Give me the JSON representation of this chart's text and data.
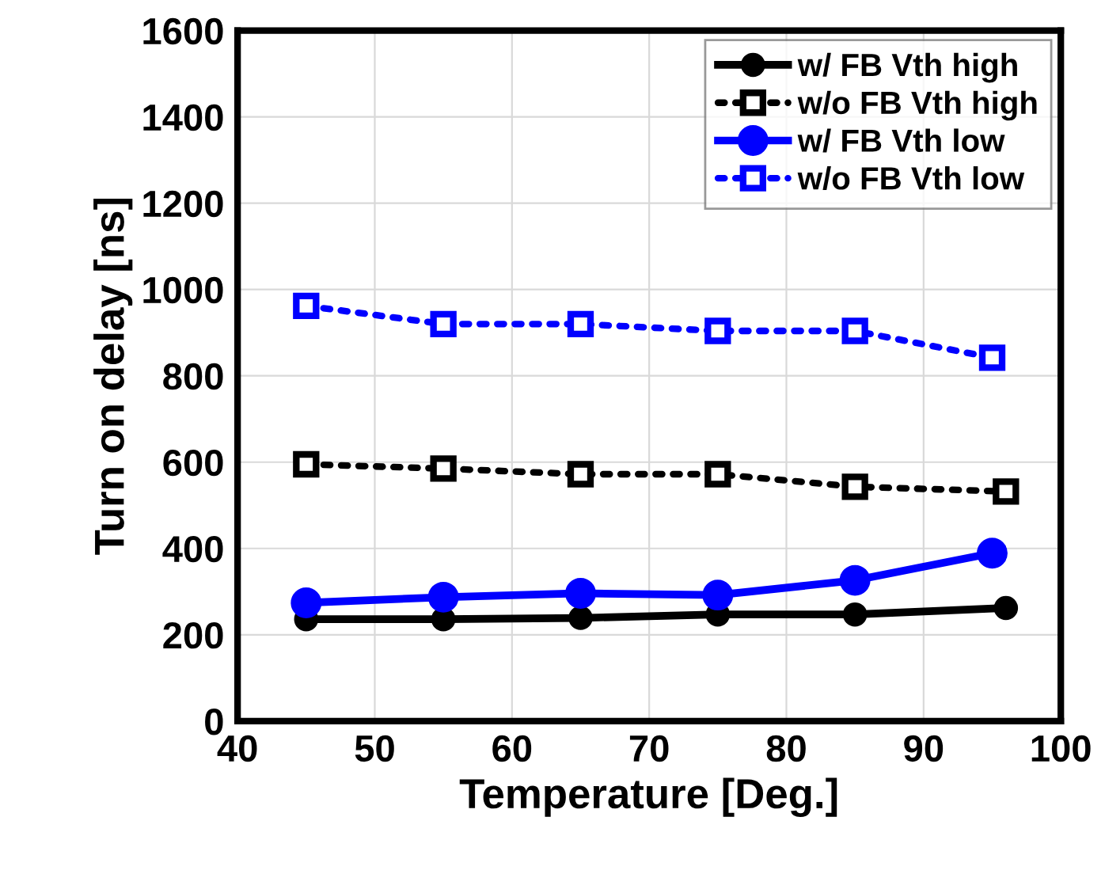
{
  "chart_data": {
    "type": "line",
    "xlabel": "Temperature [Deg.]",
    "ylabel": "Turn on delay [ns]",
    "xlim": [
      40,
      100
    ],
    "xticks": [
      40,
      50,
      60,
      70,
      80,
      90,
      100
    ],
    "ylim": [
      0,
      1600
    ],
    "yticks": [
      0,
      200,
      400,
      600,
      800,
      1000,
      1200,
      1400,
      1600
    ],
    "grid": true,
    "legend": "top right",
    "series": [
      {
        "name": "w/ FB Vth high",
        "color": "#000000",
        "marker": "circle",
        "line_style": "solid",
        "x": [
          45,
          55,
          65,
          75,
          85,
          96
        ],
        "values": [
          236,
          236,
          239,
          247,
          247,
          262
        ]
      },
      {
        "name": "w/o FB Vth high",
        "color": "#000000",
        "marker": "square",
        "line_style": "dotted",
        "x": [
          45,
          55,
          65,
          75,
          85,
          96
        ],
        "values": [
          595,
          585,
          572,
          572,
          543,
          532
        ]
      },
      {
        "name": "w/ FB Vth low",
        "color": "#0000ff",
        "marker": "circle",
        "line_style": "solid",
        "x": [
          45,
          55,
          65,
          75,
          85,
          95
        ],
        "values": [
          274,
          287,
          296,
          292,
          326,
          389
        ]
      },
      {
        "name": "w/o FB Vth low",
        "color": "#0000ff",
        "marker": "square",
        "line_style": "dotted",
        "x": [
          45,
          55,
          65,
          75,
          85,
          95
        ],
        "values": [
          962,
          920,
          920,
          904,
          904,
          842
        ]
      }
    ]
  }
}
